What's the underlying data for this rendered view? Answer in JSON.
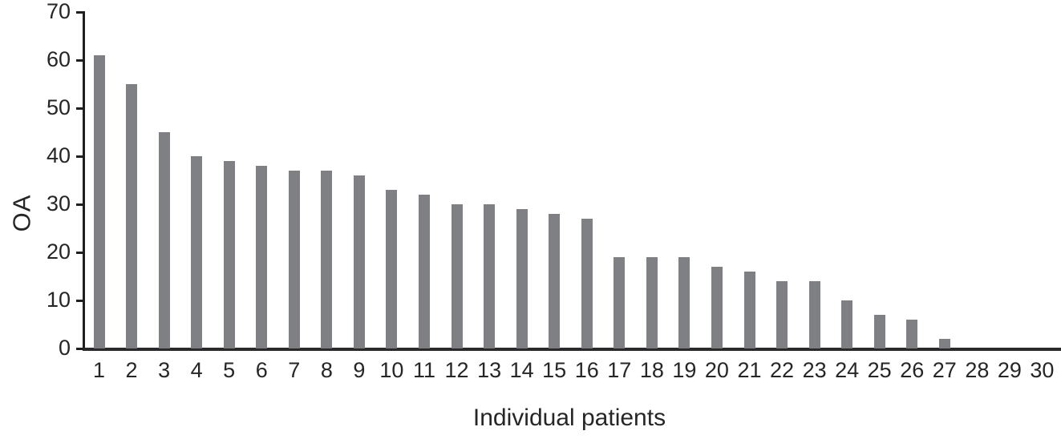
{
  "chart_data": {
    "type": "bar",
    "title": "",
    "xlabel": "Individual patients",
    "ylabel": "OA",
    "categories": [
      "1",
      "2",
      "3",
      "4",
      "5",
      "6",
      "7",
      "8",
      "9",
      "10",
      "11",
      "12",
      "13",
      "14",
      "15",
      "16",
      "17",
      "18",
      "19",
      "20",
      "21",
      "22",
      "23",
      "24",
      "25",
      "26",
      "27",
      "28",
      "29",
      "30"
    ],
    "values": [
      61,
      55,
      45,
      40,
      39,
      38,
      37,
      37,
      36,
      33,
      32,
      30,
      30,
      29,
      28,
      27,
      19,
      19,
      19,
      17,
      16,
      14,
      14,
      10,
      7,
      6,
      2,
      0,
      0,
      0
    ],
    "ylim": [
      0,
      70
    ],
    "yticks": [
      0,
      10,
      20,
      30,
      40,
      50,
      60,
      70
    ],
    "grid": "off",
    "legend": "none",
    "bar_color": "#7f8084",
    "axis_color": "#1f1f1f",
    "text_color": "#262626",
    "background": "#ffffff"
  }
}
